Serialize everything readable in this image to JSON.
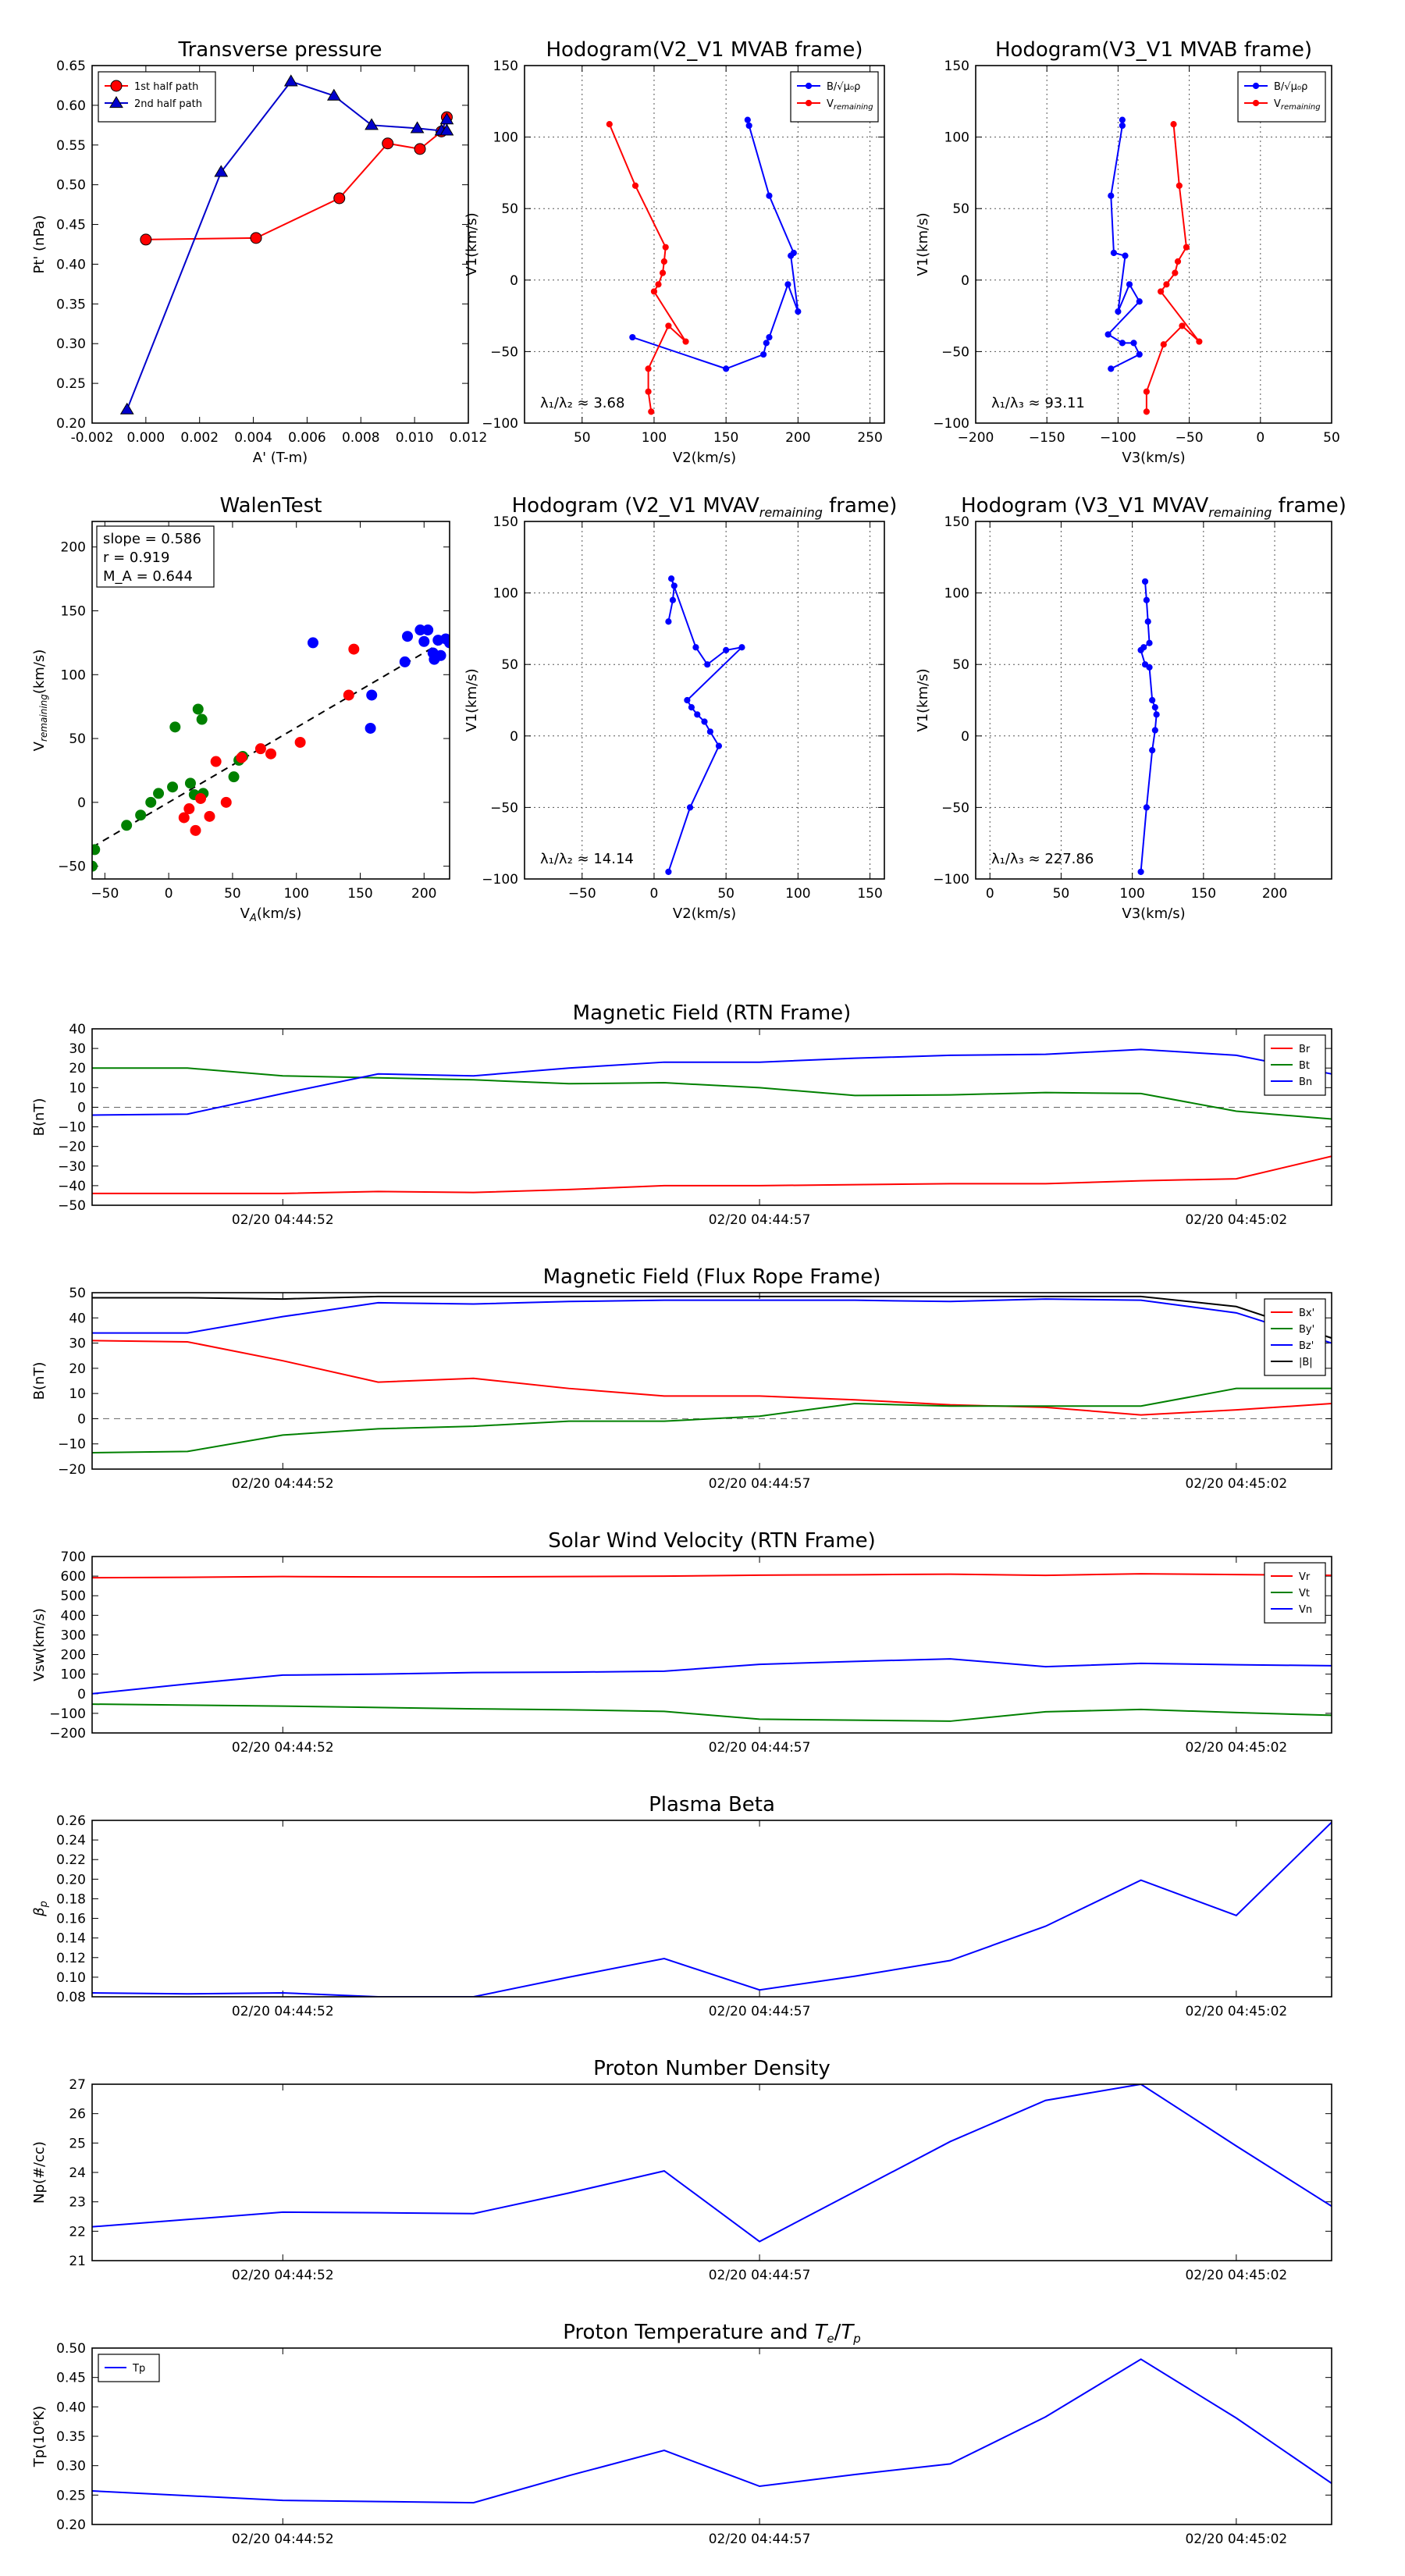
{
  "chart_data": [
    {
      "id": "tp",
      "type": "line",
      "title": "Transverse pressure",
      "xlabel": "A' (T-m)",
      "ylabel": "Pt' (nPa)",
      "xlim": [
        -0.002,
        0.012
      ],
      "ylim": [
        0.2,
        0.65
      ],
      "xticks": [
        "-0.002",
        "0.000",
        "0.002",
        "0.004",
        "0.006",
        "0.008",
        "0.010",
        "0.012"
      ],
      "yticks": [
        "0.20",
        "0.25",
        "0.30",
        "0.35",
        "0.40",
        "0.45",
        "0.50",
        "0.55",
        "0.60",
        "0.65"
      ],
      "grid": false,
      "legend": "top-left",
      "series": [
        {
          "name": "1st half path",
          "color": "#ff0000",
          "marker": "circle",
          "x": [
            0.0,
            0.0041,
            0.0072,
            0.009,
            0.0102,
            0.011,
            0.0112
          ],
          "y": [
            0.431,
            0.433,
            0.483,
            0.552,
            0.545,
            0.567,
            0.585
          ]
        },
        {
          "name": "2nd half path",
          "color": "#0000cc",
          "marker": "triangle",
          "x": [
            -0.0007,
            0.0028,
            0.0054,
            0.007,
            0.0084,
            0.0101,
            0.011,
            0.0112,
            0.0112
          ],
          "y": [
            0.217,
            0.516,
            0.63,
            0.612,
            0.575,
            0.571,
            0.568,
            0.582,
            0.568
          ]
        }
      ]
    },
    {
      "id": "h1",
      "type": "line",
      "title": "Hodogram(V2_V1 MVAB frame)",
      "xlabel": "V2(km/s)",
      "ylabel": "V1(km/s)",
      "xlim": [
        10,
        260
      ],
      "ylim": [
        -100,
        150
      ],
      "xticks": [
        "50",
        "100",
        "150",
        "200",
        "250"
      ],
      "yticks": [
        "−100",
        "−50",
        "0",
        "50",
        "100",
        "150"
      ],
      "grid": true,
      "legend": "top-right",
      "annotation": "λ₁/λ₂ ≈ 3.68",
      "series": [
        {
          "name": "B/√(μ₀ρ)",
          "color": "#0000ff",
          "marker": "dot",
          "x": [
            165,
            166,
            180,
            197,
            195,
            200,
            193,
            180,
            178,
            176,
            150,
            85
          ],
          "y": [
            112,
            108,
            59,
            19,
            17,
            -22,
            -3,
            -40,
            -44,
            -52,
            -62,
            -40
          ]
        },
        {
          "name": "V_remaining",
          "color": "#ff0000",
          "marker": "dot",
          "x": [
            69,
            87,
            108,
            107,
            106,
            103,
            100,
            122,
            110,
            96,
            96,
            98
          ],
          "y": [
            109,
            66,
            23,
            13,
            5,
            -3,
            -8,
            -43,
            -32,
            -62,
            -78,
            -92
          ]
        }
      ]
    },
    {
      "id": "h2",
      "type": "line",
      "title": "Hodogram(V3_V1 MVAB frame)",
      "xlabel": "V3(km/s)",
      "ylabel": "V1(km/s)",
      "xlim": [
        -200,
        50
      ],
      "ylim": [
        -100,
        150
      ],
      "xticks": [
        "−200",
        "−150",
        "−100",
        "−50",
        "0",
        "50"
      ],
      "yticks": [
        "−100",
        "−50",
        "0",
        "50",
        "100",
        "150"
      ],
      "grid": true,
      "legend": "top-right",
      "annotation": "λ₁/λ₃ ≈ 93.11",
      "series": [
        {
          "name": "B/√(μ₀ρ)",
          "color": "#0000ff",
          "marker": "dot",
          "x": [
            -97,
            -97,
            -105,
            -103,
            -95,
            -100,
            -92,
            -85,
            -107,
            -97,
            -89,
            -85,
            -105
          ],
          "y": [
            112,
            108,
            59,
            19,
            17,
            -22,
            -3,
            -15,
            -38,
            -44,
            -44,
            -52,
            -62
          ]
        },
        {
          "name": "V_remaining",
          "color": "#ff0000",
          "marker": "dot",
          "x": [
            -61,
            -57,
            -52,
            -58,
            -60,
            -66,
            -70,
            -43,
            -55,
            -68,
            -80,
            -80
          ],
          "y": [
            109,
            66,
            23,
            13,
            5,
            -3,
            -8,
            -43,
            -32,
            -45,
            -78,
            -92
          ]
        }
      ]
    },
    {
      "id": "walen",
      "type": "scatter",
      "title": "WalenTest",
      "xlabel": "V_A(km/s)",
      "ylabel": "V_remaining(km/s)",
      "xlim": [
        -60,
        220
      ],
      "ylim": [
        -60,
        220
      ],
      "xticks": [
        "−50",
        "0",
        "50",
        "100",
        "150",
        "200"
      ],
      "yticks": [
        "−50",
        "0",
        "50",
        "100",
        "150",
        "200"
      ],
      "grid": false,
      "annotations": [
        "slope = 0.586",
        "r = 0.919",
        "M_A = 0.644"
      ],
      "fit_line": {
        "slope": 0.586,
        "intercept": 0,
        "x": [
          -60,
          220
        ]
      },
      "series": [
        {
          "name": "",
          "color": "#008000",
          "marker": "dot",
          "x": [
            -60,
            -58,
            -33,
            -22,
            -14,
            -8,
            3,
            5,
            17,
            20,
            23,
            26,
            27,
            51,
            55,
            58
          ],
          "y": [
            -50,
            -37,
            -18,
            -10,
            0,
            7,
            12,
            59,
            15,
            6,
            73,
            65,
            7,
            20,
            33,
            36
          ]
        },
        {
          "name": "",
          "color": "#ff0000",
          "marker": "dot",
          "x": [
            12,
            16,
            21,
            25,
            32,
            37,
            45,
            57,
            72,
            80,
            103,
            141,
            145
          ],
          "y": [
            -12,
            -5,
            -22,
            3,
            -11,
            32,
            0,
            35,
            42,
            38,
            47,
            84,
            120
          ]
        },
        {
          "name": "",
          "color": "#0000ff",
          "marker": "dot",
          "x": [
            113,
            158,
            159,
            185,
            187,
            197,
            200,
            203,
            207,
            208,
            211,
            213,
            217,
            220
          ],
          "y": [
            125,
            58,
            84,
            110,
            130,
            135,
            126,
            135,
            117,
            112,
            127,
            115,
            128,
            125
          ]
        }
      ]
    },
    {
      "id": "h3",
      "type": "line",
      "title": "Hodogram (V2_V1 MVAV_remaining frame)",
      "xlabel": "V2(km/s)",
      "ylabel": "V1(km/s)",
      "xlim": [
        -90,
        160
      ],
      "ylim": [
        -100,
        150
      ],
      "xticks": [
        "−50",
        "0",
        "50",
        "100",
        "150"
      ],
      "yticks": [
        "−100",
        "−50",
        "0",
        "50",
        "100",
        "150"
      ],
      "grid": true,
      "annotation": "λ₁/λ₂ ≈ 14.14",
      "series": [
        {
          "name": "",
          "color": "#0000ff",
          "marker": "dot",
          "x": [
            10,
            25,
            45,
            39,
            35,
            30,
            26,
            23,
            61,
            50,
            37,
            29,
            12,
            14,
            13,
            10
          ],
          "y": [
            -95,
            -50,
            -7,
            3,
            10,
            15,
            20,
            25,
            62,
            60,
            50,
            62,
            110,
            105,
            95,
            80
          ]
        }
      ]
    },
    {
      "id": "h4",
      "type": "line",
      "title": "Hodogram (V3_V1 MVAV_remaining frame)",
      "xlabel": "V3(km/s)",
      "ylabel": "V1(km/s)",
      "xlim": [
        -10,
        240
      ],
      "ylim": [
        -100,
        150
      ],
      "xticks": [
        "0",
        "50",
        "100",
        "150",
        "200"
      ],
      "yticks": [
        "−100",
        "−50",
        "0",
        "50",
        "100",
        "150"
      ],
      "grid": true,
      "annotation": "λ₁/λ₃ ≈ 227.86",
      "series": [
        {
          "name": "",
          "color": "#0000ff",
          "marker": "dot",
          "x": [
            106,
            110,
            114,
            116,
            117,
            116,
            114,
            112,
            109,
            106,
            108,
            112,
            111,
            110,
            109
          ],
          "y": [
            -95,
            -50,
            -10,
            4,
            15,
            20,
            25,
            48,
            50,
            60,
            62,
            65,
            80,
            95,
            108
          ]
        }
      ]
    },
    {
      "id": "mag_rtn",
      "type": "line",
      "title": "Magnetic Field (RTN Frame)",
      "ylabel": "B(nT)",
      "xlim": [
        0,
        13
      ],
      "ylim": [
        -50,
        40
      ],
      "yticks": [
        "−50",
        "−40",
        "−30",
        "−20",
        "−10",
        "0",
        "10",
        "20",
        "30",
        "40"
      ],
      "xticklabels": [
        "02/20 04:44:52",
        "02/20 04:44:57",
        "02/20 04:45:02"
      ],
      "xtickpos": [
        2,
        7,
        12
      ],
      "zero_line": true,
      "legend": "top-right",
      "x": [
        0,
        1,
        2,
        3,
        4,
        5,
        6,
        7,
        8,
        9,
        10,
        11,
        12,
        13
      ],
      "series": [
        {
          "name": "Br",
          "color": "#ff0000",
          "values": [
            -44,
            -44,
            -44,
            -43,
            -43.5,
            -42,
            -40,
            -40,
            -39.5,
            -39,
            -39,
            -37.5,
            -36.5,
            -25
          ]
        },
        {
          "name": "Bt",
          "color": "#008000",
          "values": [
            20,
            20,
            16,
            15,
            14,
            12,
            12.5,
            10,
            6,
            6.3,
            7.5,
            7,
            -2,
            -6
          ]
        },
        {
          "name": "Bn",
          "color": "#0000ff",
          "values": [
            -4,
            -3.5,
            7,
            17,
            16,
            20,
            23,
            23,
            25,
            26.5,
            27,
            29.5,
            26.5,
            17
          ]
        }
      ]
    },
    {
      "id": "mag_fr",
      "type": "line",
      "title": "Magnetic Field (Flux Rope Frame)",
      "ylabel": "B(nT)",
      "xlim": [
        0,
        13
      ],
      "ylim": [
        -20,
        50
      ],
      "yticks": [
        "−20",
        "−10",
        "0",
        "10",
        "20",
        "30",
        "40",
        "50"
      ],
      "xticklabels": [
        "02/20 04:44:52",
        "02/20 04:44:57",
        "02/20 04:45:02"
      ],
      "xtickpos": [
        2,
        7,
        12
      ],
      "zero_line": true,
      "legend": "top-right",
      "x": [
        0,
        1,
        2,
        3,
        4,
        5,
        6,
        7,
        8,
        9,
        10,
        11,
        12,
        13
      ],
      "series": [
        {
          "name": "Bx'",
          "color": "#ff0000",
          "values": [
            31,
            30.5,
            23,
            14.5,
            16,
            12,
            9,
            9,
            7.5,
            5.5,
            4.5,
            1.5,
            3.5,
            6
          ]
        },
        {
          "name": "By'",
          "color": "#008000",
          "values": [
            -13.5,
            -13,
            -6.5,
            -4,
            -3,
            -1,
            -1,
            1,
            6,
            5,
            5,
            5,
            12,
            12
          ]
        },
        {
          "name": "Bz'",
          "color": "#0000ff",
          "values": [
            34,
            34,
            40.5,
            46,
            45.5,
            46.5,
            47,
            47,
            47,
            46.5,
            47.5,
            47,
            42,
            30
          ]
        },
        {
          "name": "|B|",
          "color": "#000000",
          "values": [
            48,
            48,
            47.5,
            48.5,
            48.5,
            48.5,
            48.5,
            48.5,
            48.5,
            48.5,
            48.5,
            48.5,
            44.5,
            32
          ]
        }
      ]
    },
    {
      "id": "vsw",
      "type": "line",
      "title": "Solar Wind Velocity (RTN Frame)",
      "ylabel": "Vsw(km/s)",
      "xlim": [
        0,
        13
      ],
      "ylim": [
        -200,
        700
      ],
      "yticks": [
        "−200",
        "−100",
        "0",
        "100",
        "200",
        "300",
        "400",
        "500",
        "600",
        "700"
      ],
      "xticklabels": [
        "02/20 04:44:52",
        "02/20 04:44:57",
        "02/20 04:45:02"
      ],
      "xtickpos": [
        2,
        7,
        12
      ],
      "legend": "top-right",
      "x": [
        0,
        1,
        2,
        3,
        4,
        5,
        6,
        7,
        8,
        9,
        10,
        11,
        12,
        13
      ],
      "series": [
        {
          "name": "Vr",
          "color": "#ff0000",
          "values": [
            592,
            594,
            598,
            596,
            596,
            598,
            600,
            605,
            607,
            610,
            604,
            612,
            608,
            604
          ]
        },
        {
          "name": "Vt",
          "color": "#008000",
          "values": [
            -53,
            -58,
            -63,
            -70,
            -77,
            -82,
            -90,
            -130,
            -135,
            -140,
            -92,
            -80,
            -96,
            -110
          ]
        },
        {
          "name": "Vn",
          "color": "#0000ff",
          "values": [
            0,
            50,
            95,
            100,
            108,
            110,
            115,
            150,
            165,
            178,
            138,
            155,
            148,
            143
          ]
        }
      ]
    },
    {
      "id": "beta",
      "type": "line",
      "title": "Plasma Beta",
      "ylabel": "β_p",
      "xlim": [
        0,
        13
      ],
      "ylim": [
        0.08,
        0.26
      ],
      "yticks": [
        "0.08",
        "0.10",
        "0.12",
        "0.14",
        "0.16",
        "0.18",
        "0.20",
        "0.22",
        "0.24",
        "0.26"
      ],
      "xticklabels": [
        "02/20 04:44:52",
        "02/20 04:44:57",
        "02/20 04:45:02"
      ],
      "xtickpos": [
        2,
        7,
        12
      ],
      "x": [
        0,
        1,
        2,
        3,
        4,
        5,
        6,
        7,
        8,
        9,
        10,
        11,
        12,
        13
      ],
      "series": [
        {
          "name": "",
          "color": "#0000ff",
          "values": [
            0.084,
            0.083,
            0.084,
            0.08,
            0.08,
            0.1,
            0.119,
            0.087,
            0.101,
            0.117,
            0.152,
            0.199,
            0.163,
            0.258
          ]
        }
      ]
    },
    {
      "id": "np",
      "type": "line",
      "title": "Proton Number Density",
      "ylabel": "Np(#/cc)",
      "xlim": [
        0,
        13
      ],
      "ylim": [
        21,
        27
      ],
      "yticks": [
        "21",
        "22",
        "23",
        "24",
        "25",
        "26",
        "27"
      ],
      "xticklabels": [
        "02/20 04:44:52",
        "02/20 04:44:57",
        "02/20 04:45:02"
      ],
      "xtickpos": [
        2,
        7,
        12
      ],
      "x": [
        0,
        1,
        2,
        3,
        4,
        5,
        6,
        7,
        8,
        9,
        10,
        11,
        12,
        13
      ],
      "series": [
        {
          "name": "",
          "color": "#0000ff",
          "values": [
            22.15,
            22.4,
            22.65,
            22.63,
            22.6,
            23.3,
            24.05,
            21.65,
            23.35,
            25.05,
            26.45,
            27.0,
            24.9,
            22.85
          ]
        }
      ]
    },
    {
      "id": "tpchart",
      "type": "line",
      "title": "Proton Temperature and T_e/T_p",
      "ylabel": "Tp(10⁶K)",
      "xlim": [
        0,
        13
      ],
      "ylim": [
        0.2,
        0.5
      ],
      "yticks": [
        "0.20",
        "0.25",
        "0.30",
        "0.35",
        "0.40",
        "0.45",
        "0.50"
      ],
      "xticklabels": [
        "02/20 04:44:52",
        "02/20 04:44:57",
        "02/20 04:45:02"
      ],
      "xtickpos": [
        2,
        7,
        12
      ],
      "legend": "top-left",
      "x": [
        0,
        1,
        2,
        3,
        4,
        5,
        6,
        7,
        8,
        9,
        10,
        11,
        12,
        13
      ],
      "series": [
        {
          "name": "Tp",
          "color": "#0000ff",
          "values": [
            0.257,
            0.249,
            0.241,
            0.239,
            0.237,
            0.283,
            0.326,
            0.265,
            0.285,
            0.303,
            0.383,
            0.481,
            0.381,
            0.27
          ]
        }
      ]
    }
  ]
}
